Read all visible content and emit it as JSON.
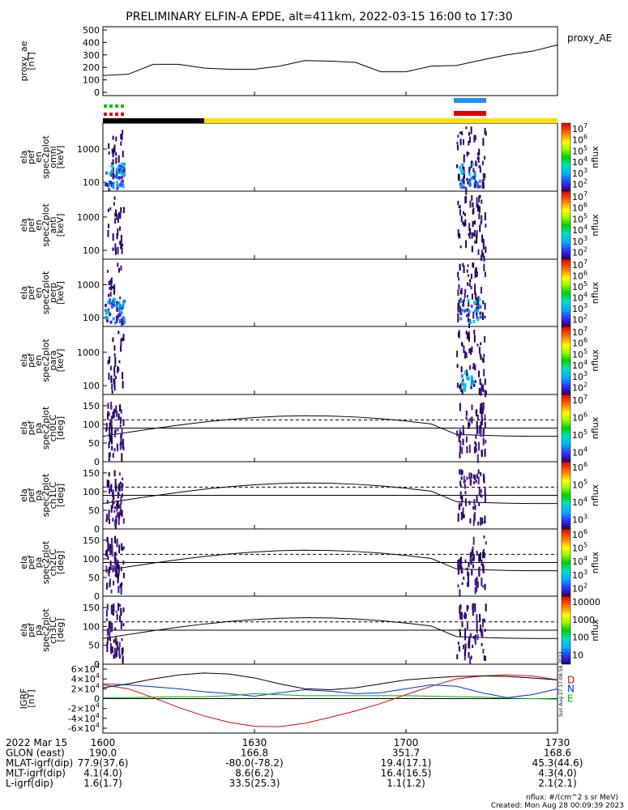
{
  "title": "PRELIMINARY ELFIN-A EPDE, alt=411km, 2022-03-15 16:00 to 17:30",
  "footer": {
    "units": "nflux: #/(cm^2 s sr MeV)",
    "created": "Created: Mon Aug 28 00:09:39 2023",
    "side_stamp": "Sun Aug 27 17:08:58 2023"
  },
  "colors": {
    "black_bar": "#000000",
    "yellow_bar": "#ffe000",
    "blue_bar": "#1e90ff",
    "red_bar": "#e00000",
    "green_dots": "#00c000",
    "igrf_D": "#e00000",
    "igrf_N": "#0030e0",
    "igrf_E": "#00b000"
  },
  "status_bars": {
    "black_span": [
      "16:00",
      "16:15"
    ],
    "yellow_span": [
      "16:15",
      "17:30"
    ],
    "blue_span": [
      "17:11",
      "17:18"
    ],
    "red_span": [
      "17:11",
      "17:18"
    ]
  },
  "chart_data": [
    {
      "type": "line",
      "name": "proxy_AE",
      "ylabel": "proxy_ae [nT]",
      "ylim": [
        0,
        500
      ],
      "yticks": [
        "0",
        "100",
        "200",
        "300",
        "400",
        "500"
      ],
      "x": [
        "16:00",
        "16:05",
        "16:10",
        "16:15",
        "16:20",
        "16:25",
        "16:30",
        "16:35",
        "16:40",
        "16:45",
        "16:50",
        "16:55",
        "17:00",
        "17:05",
        "17:10",
        "17:15",
        "17:20",
        "17:25",
        "17:30"
      ],
      "values": [
        135,
        145,
        225,
        225,
        195,
        185,
        185,
        210,
        255,
        250,
        240,
        165,
        165,
        210,
        215,
        260,
        300,
        330,
        380
      ],
      "legend": "proxy_AE"
    },
    {
      "type": "heatmap",
      "ylabel": [
        "ela",
        "pef",
        "en",
        "spec2plot",
        "omni",
        "[keV]"
      ],
      "yticks": [
        "100",
        "1000"
      ],
      "cbar_ticks": [
        "10^7",
        "10^6",
        "10^5",
        "10^4",
        "10^3",
        "10^2"
      ],
      "cbar_label": "nflux"
    },
    {
      "type": "heatmap",
      "ylabel": [
        "ela",
        "pef",
        "en",
        "spec2plot",
        "anti",
        "[keV]"
      ],
      "yticks": [
        "100",
        "1000"
      ],
      "cbar_ticks": [
        "10^7",
        "10^6",
        "10^5",
        "10^4",
        "10^3",
        "10^2"
      ],
      "cbar_label": "nflux"
    },
    {
      "type": "heatmap",
      "ylabel": [
        "ela",
        "pef",
        "en",
        "spec2plot",
        "perp",
        "[keV]"
      ],
      "yticks": [
        "100",
        "1000"
      ],
      "cbar_ticks": [
        "10^7",
        "10^6",
        "10^5",
        "10^4",
        "10^3",
        "10^2"
      ],
      "cbar_label": "nflux"
    },
    {
      "type": "heatmap",
      "ylabel": [
        "ela",
        "pef",
        "en",
        "spec2plot",
        "para",
        "[keV]"
      ],
      "yticks": [
        "100",
        "1000"
      ],
      "cbar_ticks": [
        "10^7",
        "10^6",
        "10^5",
        "10^4",
        "10^3",
        "10^2"
      ],
      "cbar_label": "nflux"
    },
    {
      "type": "heatmap",
      "ylabel": [
        "ela",
        "pef",
        "pa",
        "spec2plot",
        "ch0LC",
        "[deg]"
      ],
      "ylim": [
        0,
        180
      ],
      "yticks": [
        "0",
        "50",
        "100",
        "150"
      ],
      "cbar_ticks": [
        "10^7",
        "10^6",
        "10^5",
        "10^4"
      ],
      "cbar_label": "nflux"
    },
    {
      "type": "heatmap",
      "ylabel": [
        "ela",
        "pef",
        "pa",
        "spec2plot",
        "ch1LC",
        "[deg]"
      ],
      "ylim": [
        0,
        180
      ],
      "yticks": [
        "0",
        "50",
        "100",
        "150"
      ],
      "cbar_ticks": [
        "10^6",
        "10^5",
        "10^4",
        "10^3"
      ],
      "cbar_label": "nflux"
    },
    {
      "type": "heatmap",
      "ylabel": [
        "ela",
        "pef",
        "pa",
        "spec2plot",
        "ch2LC",
        "[deg]"
      ],
      "ylim": [
        0,
        180
      ],
      "yticks": [
        "0",
        "50",
        "100",
        "150"
      ],
      "cbar_ticks": [
        "10^6",
        "10^5",
        "10^4",
        "10^3",
        "10^2"
      ],
      "cbar_label": "nflux"
    },
    {
      "type": "heatmap",
      "ylabel": [
        "ela",
        "pef",
        "pa",
        "spec2plot",
        "ch3LC",
        "[deg]"
      ],
      "ylim": [
        0,
        180
      ],
      "yticks": [
        "0",
        "50",
        "100",
        "150"
      ],
      "cbar_ticks": [
        "10000",
        "1000",
        "100",
        "10"
      ],
      "cbar_label": "nflux"
    },
    {
      "type": "line",
      "ylabel": [
        "IGRF",
        "[nT]"
      ],
      "ylim": [
        -60000,
        60000
      ],
      "yticks": [
        "-6x10^4",
        "-4x10^4",
        "-2x10^4",
        "0",
        "2x10^4",
        "4x10^4",
        "6x10^4"
      ],
      "x": [
        "16:00",
        "16:05",
        "16:10",
        "16:15",
        "16:20",
        "16:25",
        "16:30",
        "16:35",
        "16:40",
        "16:45",
        "16:50",
        "16:55",
        "17:00",
        "17:05",
        "17:10",
        "17:15",
        "17:20",
        "17:25",
        "17:30"
      ],
      "series": [
        {
          "name": "D",
          "values": [
            28000,
            20000,
            2000,
            -18000,
            -35000,
            -48000,
            -56000,
            -57000,
            -50000,
            -38000,
            -25000,
            -10000,
            8000,
            25000,
            40000,
            46000,
            48000,
            46000,
            38000
          ]
        },
        {
          "name": "N",
          "values": [
            30000,
            28000,
            24000,
            20000,
            14000,
            10000,
            5000,
            12000,
            18000,
            15000,
            10000,
            12000,
            20000,
            28000,
            25000,
            12000,
            2000,
            8000,
            20000
          ]
        },
        {
          "name": "E",
          "values": [
            2000,
            2000,
            3000,
            4000,
            4000,
            6000,
            10000,
            8000,
            6000,
            6000,
            6000,
            6000,
            6000,
            5000,
            4000,
            3000,
            1000,
            0,
            -1000
          ]
        },
        {
          "values": [
            22000,
            30000,
            40000,
            48000,
            52000,
            50000,
            42000,
            30000,
            20000,
            18000,
            22000,
            30000,
            38000,
            42000,
            45000,
            46000,
            45000,
            42000,
            38000
          ]
        }
      ]
    }
  ],
  "time_axis": {
    "ticks": [
      "1600",
      "1630",
      "1700",
      "1730"
    ],
    "rows": [
      {
        "label": "2022 Mar 15",
        "values": [
          "1600",
          "1630",
          "1700",
          "1730"
        ]
      },
      {
        "label": "GLON (east)",
        "values": [
          "190.0",
          "166.8",
          "351.7",
          "168.6"
        ]
      },
      {
        "label": "MLAT-igrf(dip)",
        "values": [
          "77.9(37.6)",
          "-80.0(-78.2)",
          "19.4(17.1)",
          "45.3(44.6)"
        ]
      },
      {
        "label": "MLT-igrf(dip)",
        "values": [
          "4.1(4.0)",
          "8.6(6.2)",
          "16.4(16.5)",
          "4.3(4.0)"
        ]
      },
      {
        "label": "L-igrf(dip)",
        "values": [
          "1.6(1.7)",
          "33.5(25.3)",
          "1.1(1.2)",
          "2.1(2.1)"
        ]
      }
    ]
  }
}
